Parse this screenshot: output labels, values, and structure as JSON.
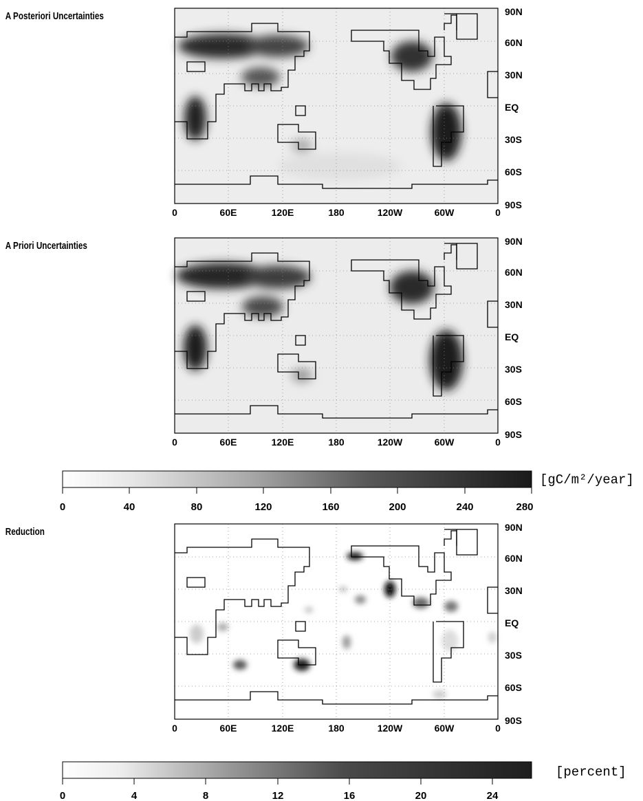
{
  "panels": [
    {
      "id": "posteriori",
      "title": "A Posteriori Uncertainties"
    },
    {
      "id": "priori",
      "title": "A Priori Uncertainties"
    },
    {
      "id": "reduction",
      "title": "Reduction"
    }
  ],
  "map_axes": {
    "lon_ticks": [
      "0",
      "60E",
      "120E",
      "180",
      "120W",
      "60W",
      "0"
    ],
    "lat_ticks": [
      "90N",
      "60N",
      "30N",
      "EQ",
      "30S",
      "60S",
      "90S"
    ],
    "grid": "dotted"
  },
  "colorbars": [
    {
      "id": "uncertainty",
      "unit": "[gC/m²/year]",
      "ticks": [
        "0",
        "40",
        "80",
        "120",
        "160",
        "200",
        "240",
        "280"
      ],
      "range": [
        0,
        280
      ]
    },
    {
      "id": "reduction",
      "unit": "[percent]",
      "ticks": [
        "0",
        "4",
        "8",
        "12",
        "16",
        "20",
        "24"
      ],
      "range": [
        0,
        24
      ]
    }
  ],
  "colors": {
    "low": "#ffffff",
    "high": "#1a1a1a",
    "grid": "#888888",
    "coast": "#000000"
  }
}
